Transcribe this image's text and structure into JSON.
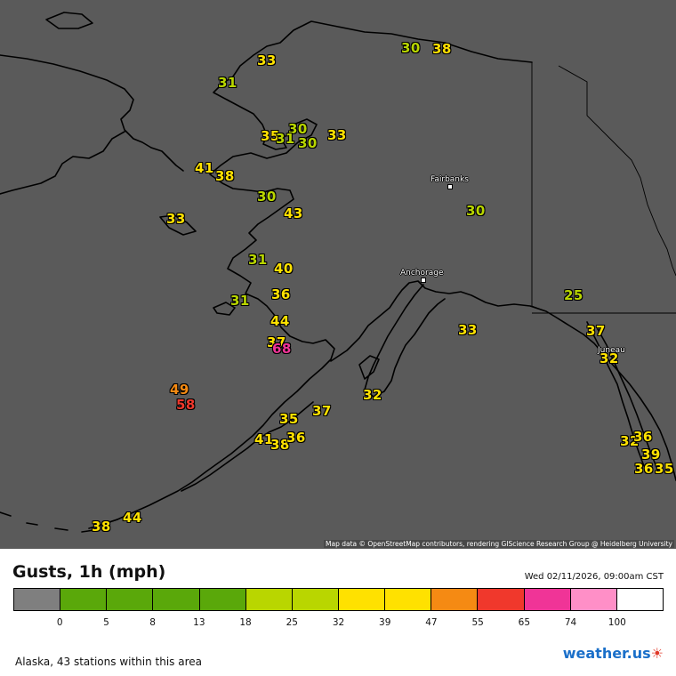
{
  "map": {
    "cities": [
      {
        "name": "Fairbanks"
      },
      {
        "name": "Anchorage"
      },
      {
        "name": "Juneau"
      }
    ],
    "gust_labels": [
      {
        "value": "33",
        "color": "yellow"
      },
      {
        "value": "31",
        "color": "lime"
      },
      {
        "value": "30",
        "color": "lime"
      },
      {
        "value": "38",
        "color": "yellow"
      },
      {
        "value": "35",
        "color": "yellow"
      },
      {
        "value": "30",
        "color": "lime"
      },
      {
        "value": "31",
        "color": "lime"
      },
      {
        "value": "30",
        "color": "lime"
      },
      {
        "value": "33",
        "color": "yellow"
      },
      {
        "value": "41",
        "color": "yellow"
      },
      {
        "value": "38",
        "color": "yellow"
      },
      {
        "value": "30",
        "color": "lime"
      },
      {
        "value": "43",
        "color": "yellow"
      },
      {
        "value": "33",
        "color": "yellow"
      },
      {
        "value": "30",
        "color": "lime"
      },
      {
        "value": "31",
        "color": "lime"
      },
      {
        "value": "40",
        "color": "yellow"
      },
      {
        "value": "36",
        "color": "yellow"
      },
      {
        "value": "31",
        "color": "lime"
      },
      {
        "value": "44",
        "color": "yellow"
      },
      {
        "value": "37",
        "color": "yellow"
      },
      {
        "value": "68",
        "color": "pink"
      },
      {
        "value": "25",
        "color": "lime"
      },
      {
        "value": "33",
        "color": "yellow"
      },
      {
        "value": "37",
        "color": "yellow"
      },
      {
        "value": "32",
        "color": "yellow"
      },
      {
        "value": "49",
        "color": "orange"
      },
      {
        "value": "58",
        "color": "red"
      },
      {
        "value": "32",
        "color": "yellow"
      },
      {
        "value": "37",
        "color": "yellow"
      },
      {
        "value": "35",
        "color": "yellow"
      },
      {
        "value": "41",
        "color": "yellow"
      },
      {
        "value": "38",
        "color": "yellow"
      },
      {
        "value": "36",
        "color": "yellow"
      },
      {
        "value": "32",
        "color": "yellow"
      },
      {
        "value": "36",
        "color": "yellow"
      },
      {
        "value": "39",
        "color": "yellow"
      },
      {
        "value": "36",
        "color": "yellow"
      },
      {
        "value": "35",
        "color": "yellow"
      },
      {
        "value": "38",
        "color": "yellow"
      },
      {
        "value": "44",
        "color": "yellow"
      }
    ],
    "attribution": "Map data © OpenStreetMap contributors, rendering GIScience Research Group @ Heidelberg University"
  },
  "legend": {
    "title": "Gusts, 1h (mph)",
    "timestamp": "Wed 02/11/2026, 09:00am CST",
    "colors": [
      "#7f7f7f",
      "#5aa80a",
      "#5aa80a",
      "#5aa80a",
      "#5aa80a",
      "#b9d600",
      "#b9d600",
      "#ffe100",
      "#ffe100",
      "#f58a13",
      "#f0382c",
      "#f03497",
      "#ff8fc7",
      "#ffffff"
    ],
    "ticks": [
      "0",
      "5",
      "8",
      "13",
      "18",
      "25",
      "32",
      "39",
      "47",
      "55",
      "65",
      "74",
      "100"
    ]
  },
  "footer": {
    "stations": "Alaska, 43 stations within this area",
    "logo_text": "weather.us"
  }
}
